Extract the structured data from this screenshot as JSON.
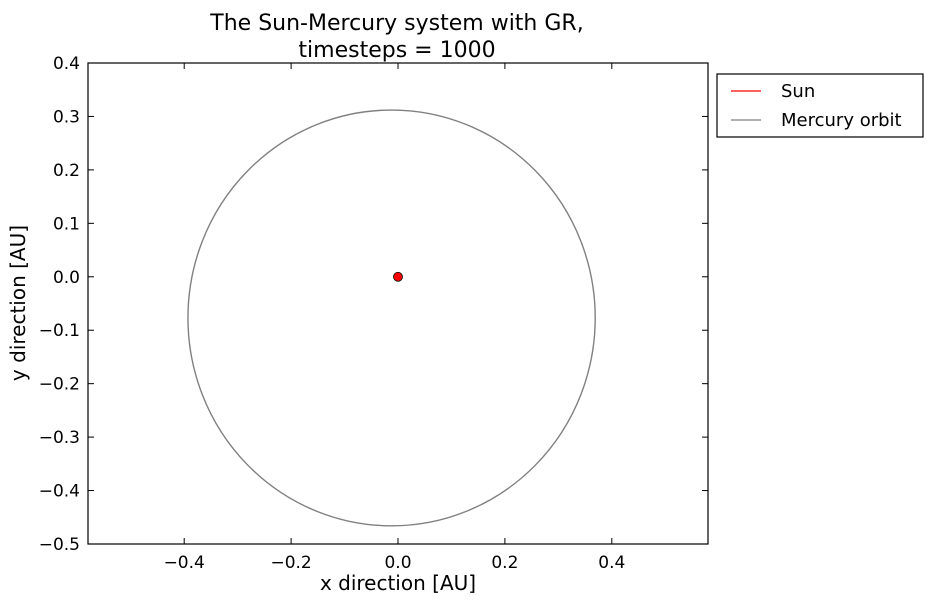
{
  "chart_data": {
    "type": "line",
    "title_lines": [
      "The Sun-Mercury system with GR,",
      "timesteps = 1000"
    ],
    "xlabel": "x direction [AU]",
    "ylabel": "y direction [AU]",
    "xlim": [
      -0.58,
      0.58
    ],
    "ylim": [
      -0.5,
      0.4
    ],
    "xticks": [
      -0.4,
      -0.2,
      0.0,
      0.2,
      0.4
    ],
    "xtick_labels": [
      "−0.4",
      "−0.2",
      "0.0",
      "0.2",
      "0.4"
    ],
    "yticks": [
      0.4,
      0.3,
      0.2,
      0.1,
      0.0,
      -0.1,
      -0.2,
      -0.3,
      -0.4,
      -0.5
    ],
    "ytick_labels": [
      "0.4",
      "0.3",
      "0.2",
      "0.1",
      "0.0",
      "−0.1",
      "−0.2",
      "−0.3",
      "−0.4",
      "−0.5"
    ],
    "grid": false,
    "legend_position": "outside-top-right",
    "series": [
      {
        "name": "Sun",
        "color": "#ff0000",
        "marker": "circle",
        "points": [
          [
            0.0,
            0.0
          ]
        ]
      },
      {
        "name": "Mercury orbit",
        "color": "#808080",
        "shape": "ellipse",
        "center": [
          -0.012,
          -0.077
        ],
        "semi_axis_x": 0.381,
        "semi_axis_y": 0.389
      }
    ]
  }
}
